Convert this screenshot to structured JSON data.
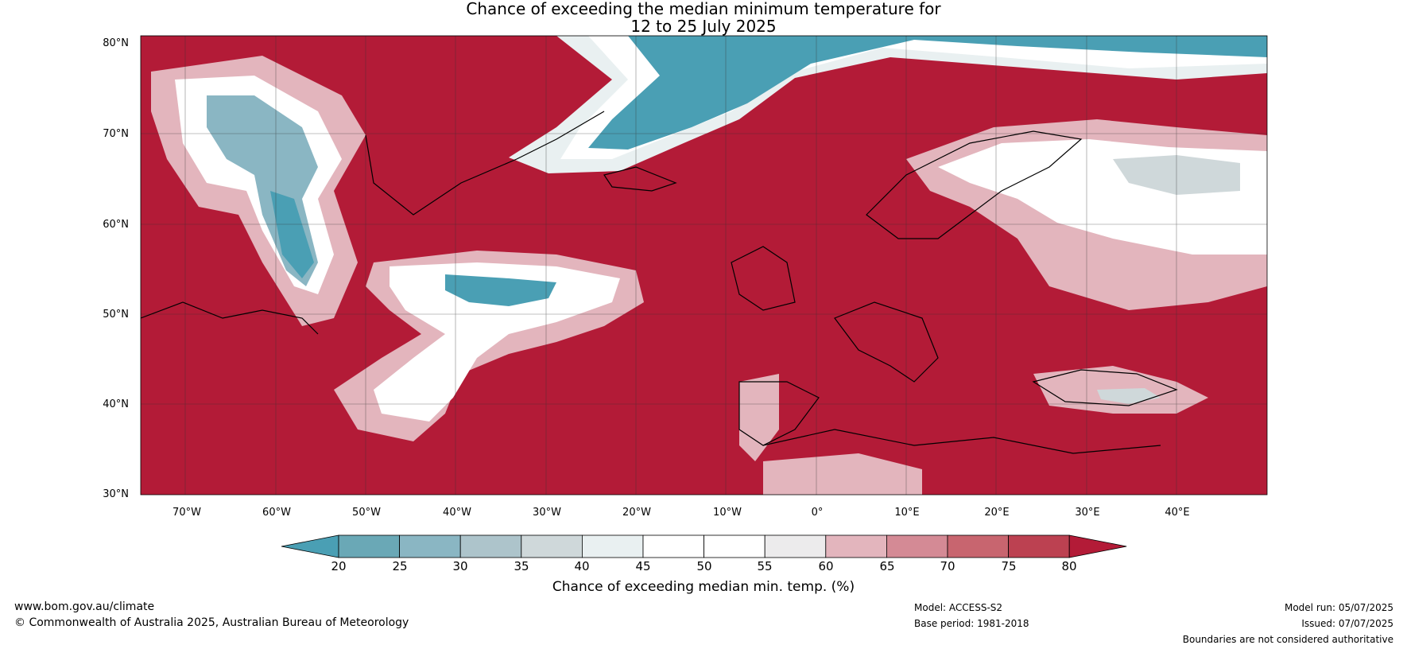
{
  "title": {
    "line1": "Chance of exceeding the median minimum temperature for",
    "line2": "12 to 25 July 2025"
  },
  "map": {
    "lat_labels": [
      "80°N",
      "70°N",
      "60°N",
      "50°N",
      "40°N",
      "30°N"
    ],
    "lon_labels": [
      "70°W",
      "60°W",
      "50°W",
      "40°W",
      "30°W",
      "20°W",
      "10°W",
      "0°",
      "10°E",
      "20°E",
      "30°E",
      "40°E"
    ],
    "lon_range": [
      -75,
      50
    ],
    "lat_range": [
      30,
      81
    ],
    "grid": true
  },
  "colorbar": {
    "label": "Chance of exceeding median min. temp. (%)",
    "ticks": [
      "20",
      "25",
      "30",
      "35",
      "40",
      "45",
      "50",
      "55",
      "60",
      "65",
      "70",
      "75",
      "80"
    ],
    "colors": [
      "#4a9fb4",
      "#6aa8b6",
      "#8ab6c3",
      "#adc4cb",
      "#cfd8da",
      "#e9f0f1",
      "#ffffff",
      "#ffffff",
      "#ecebec",
      "#e3b5bd",
      "#d48a95",
      "#c8656f",
      "#bc4151",
      "#b31b37"
    ]
  },
  "footer": {
    "website": "www.bom.gov.au/climate",
    "copyright": "© Commonwealth of Australia 2025, Australian Bureau of Meteorology",
    "model": "Model: ACCESS-S2",
    "base_period": "Base period: 1981-2018",
    "model_run": "Model run: 05/07/2025",
    "issued": "Issued: 07/07/2025",
    "disclaimer": "Boundaries are not considered authoritative"
  }
}
